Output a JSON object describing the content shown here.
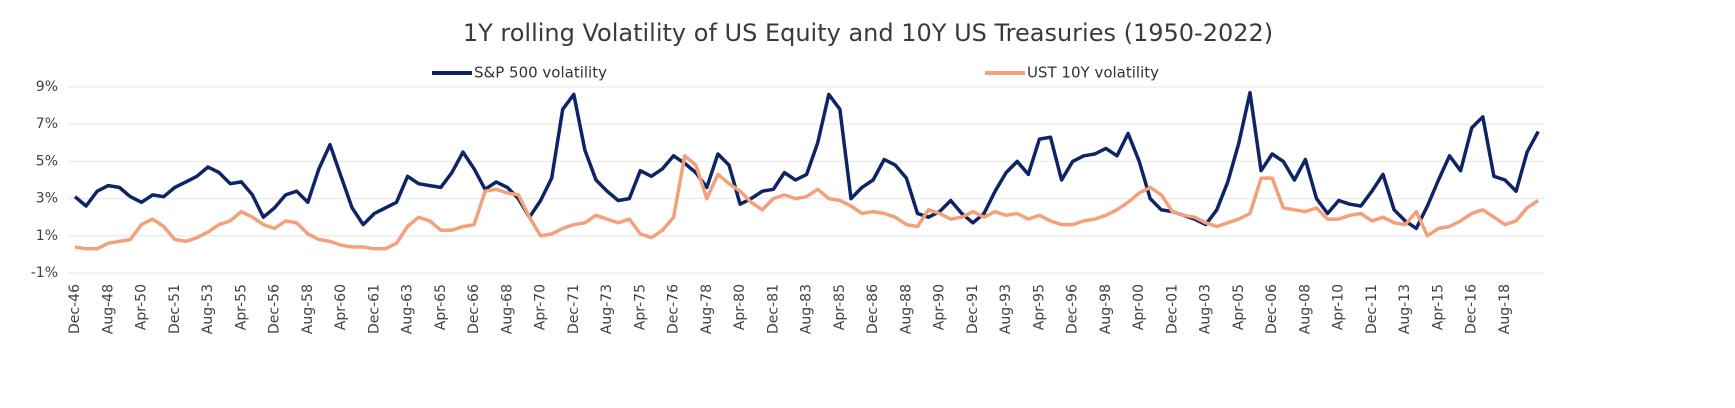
{
  "chart_data": {
    "type": "line",
    "title": "1Y rolling Volatility of US Equity and 10Y US Treasuries (1950-2022)",
    "categories": [
      "Dec-46",
      null,
      null,
      "Aug-48",
      null,
      null,
      "Apr-50",
      null,
      null,
      "Dec-51",
      null,
      null,
      "Aug-53",
      null,
      null,
      "Apr-55",
      null,
      null,
      "Dec-56",
      null,
      null,
      "Aug-58",
      null,
      null,
      "Apr-60",
      null,
      null,
      "Dec-61",
      null,
      null,
      "Aug-63",
      null,
      null,
      "Apr-65",
      null,
      null,
      "Dec-66",
      null,
      null,
      "Aug-68",
      null,
      null,
      "Apr-70",
      null,
      null,
      "Dec-71",
      null,
      null,
      "Aug-73",
      null,
      null,
      "Apr-75",
      null,
      null,
      "Dec-76",
      null,
      null,
      "Aug-78",
      null,
      null,
      "Apr-80",
      null,
      null,
      "Dec-81",
      null,
      null,
      "Aug-83",
      null,
      null,
      "Apr-85",
      null,
      null,
      "Dec-86",
      null,
      null,
      "Aug-88",
      null,
      null,
      "Apr-90",
      null,
      null,
      "Dec-91",
      null,
      null,
      "Aug-93",
      null,
      null,
      "Apr-95",
      null,
      null,
      "Dec-96",
      null,
      null,
      "Aug-98",
      null,
      null,
      "Apr-00",
      null,
      null,
      "Dec-01",
      null,
      null,
      "Aug-03",
      null,
      null,
      "Apr-05",
      null,
      null,
      "Dec-06",
      null,
      null,
      "Aug-08",
      null,
      null,
      "Apr-10",
      null,
      null,
      "Dec-11",
      null,
      null,
      "Aug-13",
      null,
      null,
      "Apr-15",
      null,
      null,
      "Dec-16",
      null,
      null,
      "Aug-18",
      null,
      null,
      null
    ],
    "series": [
      {
        "name": "S&P 500 volatility",
        "color": "#0d2466",
        "values": [
          3.1,
          2.6,
          3.4,
          3.7,
          3.6,
          3.1,
          2.8,
          3.2,
          3.1,
          3.6,
          3.9,
          4.2,
          4.7,
          4.4,
          3.8,
          3.9,
          3.2,
          2.0,
          2.5,
          3.2,
          3.4,
          2.8,
          4.6,
          5.9,
          4.2,
          2.5,
          1.6,
          2.2,
          2.5,
          2.8,
          4.2,
          3.8,
          3.7,
          3.6,
          4.4,
          5.5,
          4.6,
          3.5,
          3.9,
          3.6,
          3.0,
          2.0,
          2.9,
          4.1,
          7.8,
          8.6,
          5.6,
          4.0,
          3.4,
          2.9,
          3.0,
          4.5,
          4.2,
          4.6,
          5.3,
          4.9,
          4.4,
          3.6,
          5.4,
          4.8,
          2.7,
          3.0,
          3.4,
          3.5,
          4.4,
          4.0,
          4.3,
          6.0,
          8.6,
          7.8,
          3.0,
          3.6,
          4.0,
          5.1,
          4.8,
          4.1,
          2.2,
          2.0,
          2.3,
          2.9,
          2.2,
          1.7,
          2.2,
          3.4,
          4.4,
          5.0,
          4.3,
          6.2,
          6.3,
          4.0,
          5.0,
          5.3,
          5.4,
          5.7,
          5.3,
          6.5,
          5.0,
          3.0,
          2.4,
          2.3,
          2.1,
          1.9,
          1.6,
          2.4,
          3.9,
          6.0,
          8.7,
          4.5,
          5.4,
          5.0,
          4.0,
          5.1,
          3.0,
          2.2,
          2.9,
          2.7,
          2.6,
          3.4,
          4.3,
          2.4,
          1.8,
          1.4,
          2.6,
          4.0,
          5.3,
          4.5,
          6.8,
          7.4,
          4.2,
          4.0,
          3.4,
          5.5,
          6.6
        ]
      },
      {
        "name": "UST 10Y volatility",
        "color": "#f4a07a",
        "values": [
          0.4,
          0.3,
          0.3,
          0.6,
          0.7,
          0.8,
          1.6,
          1.9,
          1.5,
          0.8,
          0.7,
          0.9,
          1.2,
          1.6,
          1.8,
          2.3,
          2.0,
          1.6,
          1.4,
          1.8,
          1.7,
          1.1,
          0.8,
          0.7,
          0.5,
          0.4,
          0.4,
          0.3,
          0.3,
          0.6,
          1.5,
          2.0,
          1.8,
          1.3,
          1.3,
          1.5,
          1.6,
          3.4,
          3.5,
          3.3,
          3.2,
          2.0,
          1.0,
          1.1,
          1.4,
          1.6,
          1.7,
          2.1,
          1.9,
          1.7,
          1.9,
          1.1,
          0.9,
          1.3,
          2.0,
          5.3,
          4.8,
          3.0,
          4.3,
          3.8,
          3.4,
          2.8,
          2.4,
          3.0,
          3.2,
          3.0,
          3.1,
          3.5,
          3.0,
          2.9,
          2.6,
          2.2,
          2.3,
          2.2,
          2.0,
          1.6,
          1.5,
          2.4,
          2.2,
          1.9,
          2.0,
          2.3,
          2.0,
          2.3,
          2.1,
          2.2,
          1.9,
          2.1,
          1.8,
          1.6,
          1.6,
          1.8,
          1.9,
          2.1,
          2.4,
          2.8,
          3.3,
          3.6,
          3.2,
          2.3,
          2.1,
          2.0,
          1.7,
          1.5,
          1.7,
          1.9,
          2.2,
          4.1,
          4.1,
          2.5,
          2.4,
          2.3,
          2.5,
          1.9,
          1.9,
          2.1,
          2.2,
          1.8,
          2.0,
          1.7,
          1.6,
          2.3,
          1.0,
          1.4,
          1.5,
          1.8,
          2.2,
          2.4,
          2.0,
          1.6,
          1.8,
          2.5,
          2.9
        ]
      }
    ],
    "ylim": [
      -1,
      9
    ],
    "yticks": [
      {
        "value": -1,
        "label": "-1%"
      },
      {
        "value": 1,
        "label": "1%"
      },
      {
        "value": 3,
        "label": "3%"
      },
      {
        "value": 5,
        "label": "5%"
      },
      {
        "value": 7,
        "label": "7%"
      },
      {
        "value": 9,
        "label": "9%"
      }
    ],
    "grid": true
  }
}
